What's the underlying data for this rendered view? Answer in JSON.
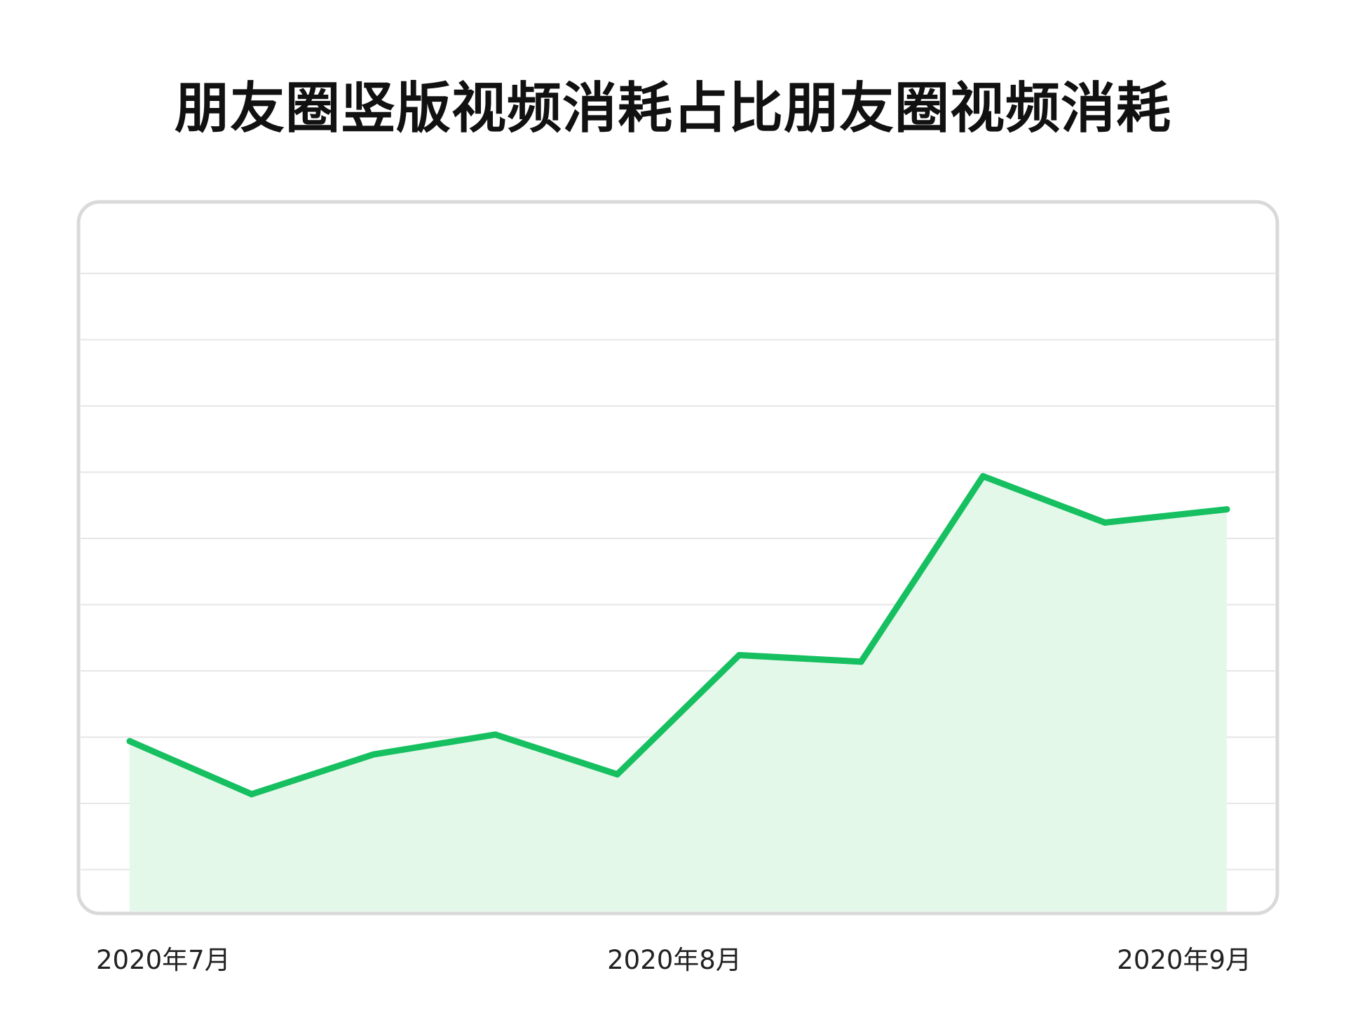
{
  "chart_data": {
    "type": "area",
    "title": "朋友圈竖版视频消耗占比朋友圈视频消耗",
    "xlabel": "",
    "ylabel": "",
    "x_tick_labels": [
      {
        "label": "2020年7月",
        "at_index": 0
      },
      {
        "label": "2020年8月",
        "at_index": 4
      },
      {
        "label": "2020年9月",
        "at_index": 9
      }
    ],
    "series": [
      {
        "values": [
          2.6,
          1.8,
          2.4,
          2.7,
          2.1,
          3.9,
          3.8,
          6.6,
          5.9,
          6.1
        ]
      }
    ],
    "ylim": [
      0,
      10.7
    ],
    "grid": "horizontal",
    "gridline_count": 10,
    "legend": "none",
    "colors": {
      "line": "#16c060",
      "fill": "#e4f8ea",
      "grid": "#e6e6e6",
      "frame": "#d9d9d9"
    }
  }
}
